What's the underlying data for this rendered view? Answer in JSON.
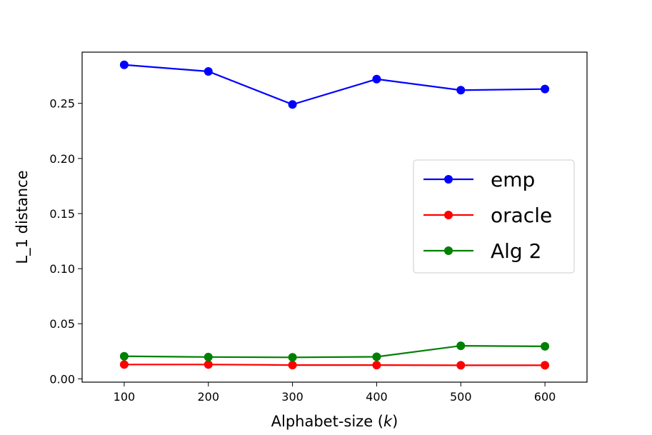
{
  "chart_data": {
    "type": "line",
    "xlabel_prefix": "Alphabet-size (",
    "xlabel_var": "k",
    "xlabel_suffix": ")",
    "ylabel": "L_1 distance",
    "x": [
      100,
      200,
      300,
      400,
      500,
      600
    ],
    "xticks": [
      "100",
      "200",
      "300",
      "400",
      "500",
      "600"
    ],
    "yticks": [
      "0.00",
      "0.05",
      "0.10",
      "0.15",
      "0.20",
      "0.25"
    ],
    "ytick_values": [
      0.0,
      0.05,
      0.1,
      0.15,
      0.2,
      0.25
    ],
    "xlim": [
      50,
      650
    ],
    "ylim": [
      -0.003,
      0.2965
    ],
    "legend_position": "center-right",
    "series": [
      {
        "name": "emp",
        "color": "#0000ff",
        "values": [
          0.285,
          0.279,
          0.249,
          0.272,
          0.262,
          0.263
        ]
      },
      {
        "name": "oracle",
        "color": "#ff0000",
        "values": [
          0.013,
          0.013,
          0.0125,
          0.0125,
          0.0123,
          0.0123
        ]
      },
      {
        "name": "Alg 2",
        "color": "#008000",
        "values": [
          0.0205,
          0.0198,
          0.0195,
          0.02,
          0.03,
          0.0295
        ]
      }
    ]
  }
}
